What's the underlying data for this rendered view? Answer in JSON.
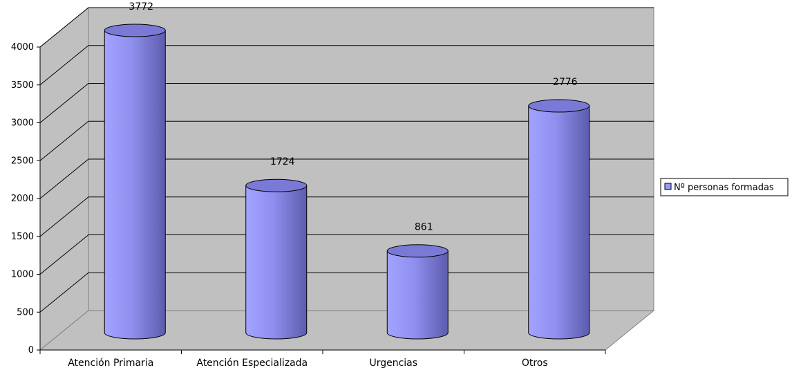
{
  "chart_data": {
    "type": "bar",
    "style": "3d-cylinder",
    "categories": [
      "Atención Primaria",
      "Atención Especializada",
      "Urgencias",
      "Otros"
    ],
    "series": [
      {
        "name": "Nº personas formadas",
        "values": [
          3772,
          1724,
          861,
          2776
        ]
      }
    ],
    "data_labels": [
      "3772",
      "1724",
      "861",
      "2776"
    ],
    "y_ticks": [
      "0",
      "500",
      "1000",
      "1500",
      "2000",
      "2500",
      "3000",
      "3500",
      "4000"
    ],
    "ylim": [
      0,
      4000
    ],
    "grid": true,
    "legend_position": "right",
    "colors": {
      "bar": "#9999ff",
      "wall": "#c0c0c0",
      "floor": "#c0c0c0",
      "grid": "#000000"
    }
  }
}
